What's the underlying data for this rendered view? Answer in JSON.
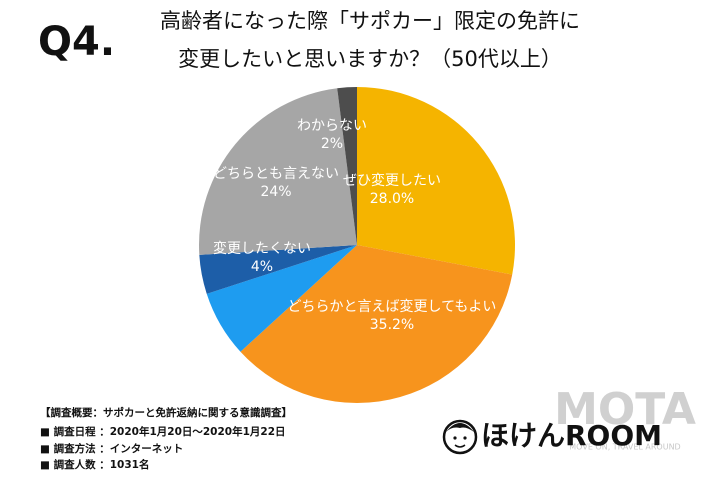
{
  "chart_data": {
    "type": "pie",
    "question_label": "Q4.",
    "title": [
      "高齢者になった際「サポカー」限定の免許に",
      "変更したいと思いますか？（50代以上）"
    ],
    "categories": [
      "ぜひ変更したい",
      "どちらかと言えば変更してもよい",
      null,
      "変更したくない",
      "どちらとも言えない",
      "わからない"
    ],
    "values": [
      28.0,
      35.2,
      6.8,
      4,
      24,
      2
    ],
    "value_labels": [
      "28.0%",
      "35.2%",
      null,
      "4%",
      "24%",
      "2%"
    ],
    "colors": [
      "#f5b400",
      "#f7941d",
      "#1e9cf0",
      "#1d5ea8",
      "#a6a6a6",
      "#4d4d4d"
    ]
  },
  "notes": [
    "【調査概要：サポカーと免許返納に関する意識調査】",
    "■ 調査日程 ：2020年1月20日〜2020年1月22日",
    "■ 調査方法 ：インターネット",
    "■ 調査人数 ：1031名"
  ],
  "brand": "ほけんROOM",
  "watermark": "MOTA",
  "watermark_tagline": "MOVE ON, TRAVEL AROUND"
}
